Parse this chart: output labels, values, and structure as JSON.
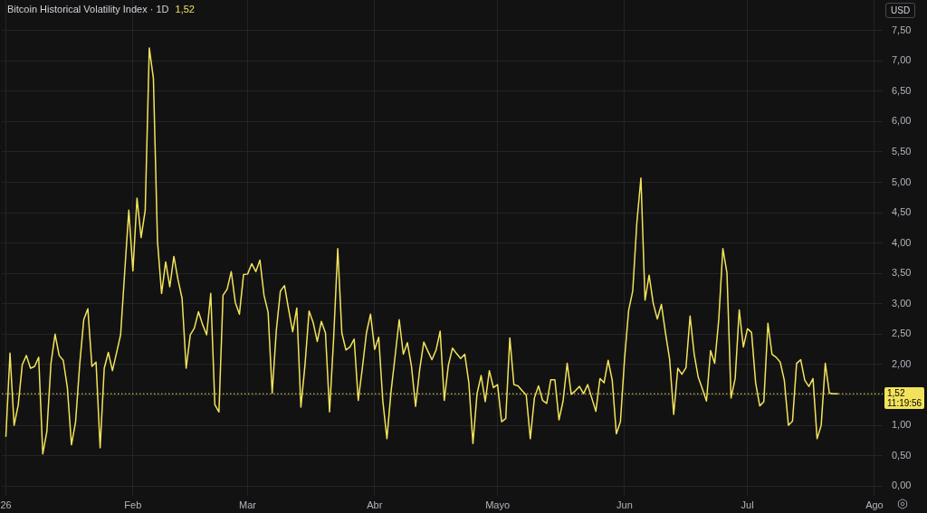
{
  "chart_data": {
    "type": "line",
    "title": "Bitcoin Historical Volatility Index · 1D",
    "subtitle": "1,52",
    "ylabel": "USD",
    "annotations": [
      "11:19:56"
    ],
    "x": [
      "2026-01-01",
      "2026-01-02",
      "2026-01-03",
      "2026-01-04",
      "2026-01-05",
      "2026-01-06",
      "2026-01-07",
      "2026-01-08",
      "2026-01-09",
      "2026-01-10",
      "2026-01-11",
      "2026-01-12",
      "2026-01-13",
      "2026-01-14",
      "2026-01-15",
      "2026-01-16",
      "2026-01-17",
      "2026-01-18",
      "2026-01-19",
      "2026-01-20",
      "2026-01-21",
      "2026-01-22",
      "2026-01-23",
      "2026-01-24",
      "2026-01-25",
      "2026-01-26",
      "2026-01-27",
      "2026-01-28",
      "2026-01-29",
      "2026-01-30",
      "2026-01-31",
      "2026-02-01",
      "2026-02-02",
      "2026-02-03",
      "2026-02-04",
      "2026-02-05",
      "2026-02-06",
      "2026-02-07",
      "2026-02-08",
      "2026-02-09",
      "2026-02-10",
      "2026-02-11",
      "2026-02-12",
      "2026-02-13",
      "2026-02-14",
      "2026-02-15",
      "2026-02-16",
      "2026-02-17",
      "2026-02-18",
      "2026-02-19",
      "2026-02-20",
      "2026-02-21",
      "2026-02-22",
      "2026-02-23",
      "2026-02-24",
      "2026-02-25",
      "2026-02-26",
      "2026-02-27",
      "2026-02-28",
      "2026-03-01",
      "2026-03-02",
      "2026-03-03",
      "2026-03-04",
      "2026-03-05",
      "2026-03-06",
      "2026-03-07",
      "2026-03-08",
      "2026-03-09",
      "2026-03-10",
      "2026-03-11",
      "2026-03-12",
      "2026-03-13",
      "2026-03-14",
      "2026-03-15",
      "2026-03-16",
      "2026-03-17",
      "2026-03-18",
      "2026-03-19",
      "2026-03-20",
      "2026-03-21",
      "2026-03-22",
      "2026-03-23",
      "2026-03-24",
      "2026-03-25",
      "2026-03-26",
      "2026-03-27",
      "2026-03-28",
      "2026-03-29",
      "2026-03-30",
      "2026-03-31",
      "2026-04-01",
      "2026-04-02",
      "2026-04-03",
      "2026-04-04",
      "2026-04-05",
      "2026-04-06",
      "2026-04-07",
      "2026-04-08",
      "2026-04-09",
      "2026-04-10",
      "2026-04-11",
      "2026-04-12",
      "2026-04-13",
      "2026-04-14",
      "2026-04-15",
      "2026-04-16",
      "2026-04-17",
      "2026-04-18",
      "2026-04-19",
      "2026-04-20",
      "2026-04-21",
      "2026-04-22",
      "2026-04-23",
      "2026-04-24",
      "2026-04-25",
      "2026-04-26",
      "2026-04-27",
      "2026-04-28",
      "2026-04-29",
      "2026-04-30",
      "2026-05-01",
      "2026-05-02",
      "2026-05-03",
      "2026-05-04",
      "2026-05-05",
      "2026-05-06",
      "2026-05-07",
      "2026-05-08",
      "2026-05-09",
      "2026-05-10",
      "2026-05-11",
      "2026-05-12",
      "2026-05-13",
      "2026-05-14",
      "2026-05-15",
      "2026-05-16",
      "2026-05-17",
      "2026-05-18",
      "2026-05-19",
      "2026-05-20",
      "2026-05-21",
      "2026-05-22",
      "2026-05-23",
      "2026-05-24",
      "2026-05-25",
      "2026-05-26",
      "2026-05-27",
      "2026-05-28",
      "2026-05-29",
      "2026-05-30",
      "2026-05-31",
      "2026-06-01",
      "2026-06-02",
      "2026-06-03",
      "2026-06-04",
      "2026-06-05",
      "2026-06-06",
      "2026-06-07",
      "2026-06-08",
      "2026-06-09",
      "2026-06-10",
      "2026-06-11",
      "2026-06-12",
      "2026-06-13",
      "2026-06-14",
      "2026-06-15",
      "2026-06-16",
      "2026-06-17",
      "2026-06-18",
      "2026-06-19",
      "2026-06-20",
      "2026-06-21",
      "2026-06-22",
      "2026-06-23",
      "2026-06-24",
      "2026-06-25",
      "2026-06-26",
      "2026-06-27",
      "2026-06-28",
      "2026-06-29",
      "2026-06-30",
      "2026-07-01",
      "2026-07-02",
      "2026-07-03",
      "2026-07-04",
      "2026-07-05",
      "2026-07-06",
      "2026-07-07",
      "2026-07-08",
      "2026-07-09",
      "2026-07-10",
      "2026-07-11",
      "2026-07-12",
      "2026-07-13",
      "2026-07-14",
      "2026-07-15",
      "2026-07-16",
      "2026-07-17",
      "2026-07-18",
      "2026-07-19",
      "2026-07-20",
      "2026-07-21",
      "2026-07-22",
      "2026-07-23"
    ],
    "series": [
      {
        "color": "#f2e35c",
        "values": [
          0.82,
          2.19,
          1.0,
          1.33,
          2.0,
          2.15,
          1.94,
          1.97,
          2.12,
          0.53,
          0.9,
          2.02,
          2.5,
          2.15,
          2.07,
          1.62,
          0.68,
          1.05,
          1.99,
          2.74,
          2.92,
          1.97,
          2.04,
          0.63,
          1.94,
          2.2,
          1.9,
          2.19,
          2.49,
          3.53,
          4.54,
          3.54,
          4.74,
          4.09,
          4.54,
          7.21,
          6.71,
          4.03,
          3.17,
          3.69,
          3.28,
          3.78,
          3.4,
          3.09,
          1.94,
          2.49,
          2.6,
          2.87,
          2.66,
          2.49,
          3.17,
          1.34,
          1.22,
          3.14,
          3.24,
          3.53,
          3.02,
          2.83,
          3.48,
          3.49,
          3.66,
          3.53,
          3.72,
          3.14,
          2.86,
          1.53,
          2.56,
          3.21,
          3.3,
          2.91,
          2.54,
          2.93,
          1.3,
          1.99,
          2.88,
          2.69,
          2.38,
          2.71,
          2.52,
          1.22,
          2.44,
          3.91,
          2.52,
          2.24,
          2.29,
          2.42,
          1.41,
          1.94,
          2.52,
          2.83,
          2.25,
          2.45,
          1.4,
          0.78,
          1.55,
          2.14,
          2.74,
          2.17,
          2.36,
          1.97,
          1.31,
          1.92,
          2.37,
          2.22,
          2.08,
          2.24,
          2.55,
          1.41,
          1.99,
          2.27,
          2.18,
          2.1,
          2.17,
          1.7,
          0.7,
          1.52,
          1.82,
          1.39,
          1.9,
          1.62,
          1.67,
          1.06,
          1.11,
          2.44,
          1.67,
          1.65,
          1.57,
          1.5,
          0.78,
          1.45,
          1.65,
          1.41,
          1.36,
          1.75,
          1.75,
          1.09,
          1.4,
          2.02,
          1.51,
          1.57,
          1.64,
          1.52,
          1.67,
          1.45,
          1.23,
          1.77,
          1.7,
          2.07,
          1.74,
          0.86,
          1.06,
          2.09,
          2.89,
          3.21,
          4.33,
          5.07,
          3.06,
          3.47,
          3.01,
          2.75,
          2.99,
          2.52,
          2.09,
          1.18,
          1.94,
          1.84,
          1.95,
          2.8,
          2.17,
          1.79,
          1.6,
          1.4,
          2.23,
          2.02,
          2.74,
          3.91,
          3.51,
          1.45,
          1.77,
          2.9,
          2.29,
          2.59,
          2.53,
          1.7,
          1.32,
          1.39,
          2.68,
          2.17,
          2.12,
          2.04,
          1.74,
          1.0,
          1.07,
          2.02,
          2.08,
          1.74,
          1.64,
          1.77,
          0.78,
          1.0,
          2.02,
          1.53,
          1.52,
          1.52
        ]
      }
    ],
    "xlim": [
      "2025-12-31",
      "2026-08-03"
    ],
    "xticks": [
      {
        "value": "2026-01-01",
        "label": "26"
      },
      {
        "value": "2026-02-01",
        "label": "Feb"
      },
      {
        "value": "2026-03-01",
        "label": "Mar"
      },
      {
        "value": "2026-04-01",
        "label": "Abr"
      },
      {
        "value": "2026-05-01",
        "label": "Mayo"
      },
      {
        "value": "2026-06-01",
        "label": "Jun"
      },
      {
        "value": "2026-07-01",
        "label": "Jul"
      },
      {
        "value": "2026-08-01",
        "label": "Ago"
      }
    ],
    "ylim": [
      -0.16,
      8.0
    ],
    "yticks": [
      {
        "value": 0,
        "label": "0,00"
      },
      {
        "value": 0.5,
        "label": "0,50"
      },
      {
        "value": 1,
        "label": "1,00"
      },
      {
        "value": 1.5,
        "label": null
      },
      {
        "value": 2,
        "label": "2,00"
      },
      {
        "value": 2.5,
        "label": "2,50"
      },
      {
        "value": 3,
        "label": "3,00"
      },
      {
        "value": 3.5,
        "label": "3,50"
      },
      {
        "value": 4,
        "label": "4,00"
      },
      {
        "value": 4.5,
        "label": "4,50"
      },
      {
        "value": 5,
        "label": "5,00"
      },
      {
        "value": 5.5,
        "label": "5,50"
      },
      {
        "value": 6,
        "label": "6,00"
      },
      {
        "value": 6.5,
        "label": "6,50"
      },
      {
        "value": 7,
        "label": "7,00"
      },
      {
        "value": 7.5,
        "label": "7,50"
      }
    ],
    "ref_lines": [
      {
        "axis": "y",
        "value": 1.52,
        "label": "1,52",
        "color": "#f2e35c",
        "line_style": "dotted"
      }
    ],
    "grid": true,
    "legend": false,
    "marker": "none",
    "line_style": "solid"
  }
}
